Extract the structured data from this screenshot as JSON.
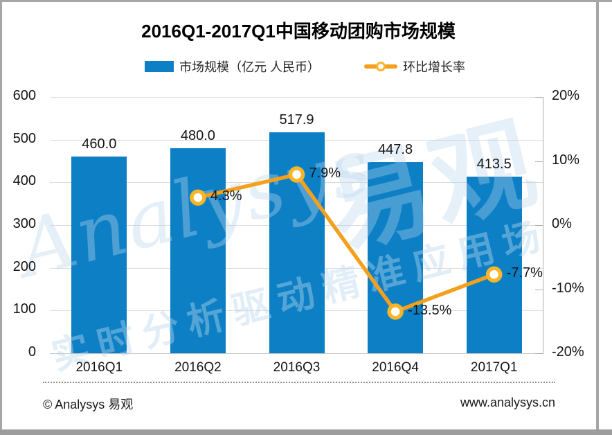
{
  "chart_data": {
    "type": "bar",
    "title": "2016Q1-2017Q1中国移动团购市场规模",
    "categories": [
      "2016Q1",
      "2016Q2",
      "2016Q3",
      "2016Q4",
      "2017Q1"
    ],
    "series": [
      {
        "name": "市场规模（亿元 人民币）",
        "kind": "bar",
        "axis": "left",
        "values": [
          460.0,
          480.0,
          517.9,
          447.8,
          413.5
        ]
      },
      {
        "name": "环比增长率",
        "kind": "line",
        "axis": "right",
        "unit": "%",
        "values": [
          null,
          4.3,
          7.9,
          -13.5,
          -7.7
        ]
      }
    ],
    "bar_labels": [
      "460.0",
      "480.0",
      "517.9",
      "447.8",
      "413.5"
    ],
    "line_labels": [
      null,
      "4.3%",
      "7.9%",
      "-13.5%",
      "-7.7%"
    ],
    "left_axis": {
      "min": 0,
      "max": 600,
      "ticks": [
        0,
        100,
        200,
        300,
        400,
        500,
        600
      ]
    },
    "right_axis": {
      "min": -20,
      "max": 20,
      "tick_values": [
        20,
        10,
        0,
        -10,
        -20
      ],
      "tick_labels": [
        "20%",
        "10%",
        "0%",
        "-10%",
        "-20%"
      ]
    },
    "grid": true,
    "legend_position": "top"
  },
  "legend": {
    "bar_label": "市场规模（亿元 人民币）",
    "line_label": "环比增长率"
  },
  "watermark": {
    "script": "Analysys",
    "brand": "易观",
    "slogan": "实时分析驱动精准应用场"
  },
  "footer": {
    "left": "© Analysys 易观",
    "right": "www.analysys.cn"
  },
  "colors": {
    "bar": "#0d80c5",
    "line": "#f4a01d",
    "marker_ring": "#f9b52a",
    "grid": "#dcdcdc",
    "baseline": "#c6c6c6",
    "axis": "#ababab",
    "watermark": "#b9d6ee"
  }
}
